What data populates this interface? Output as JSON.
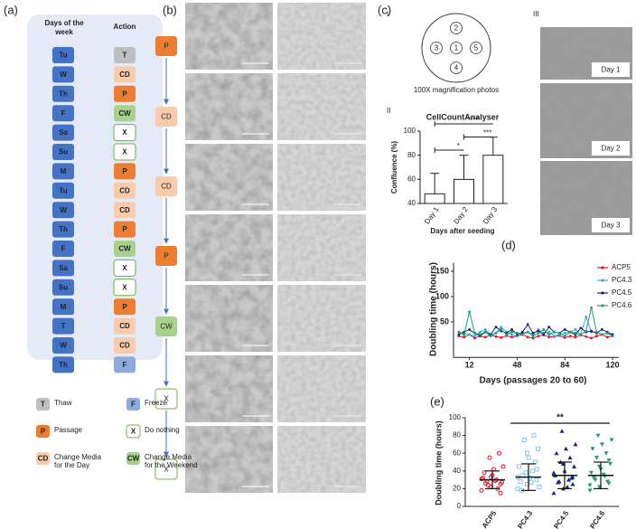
{
  "panel_a": {
    "label": "(a)",
    "headers": [
      "Days of the week",
      "Action"
    ],
    "day_color": "#4472c4",
    "action_colors": {
      "T": "#bfbfbf",
      "CD": "#f8cbad",
      "P": "#ed7d31",
      "CW": "#a9d18e",
      "X": "#ffffff",
      "F": "#8faadc"
    },
    "action_borders": {
      "X": "#70ad47"
    },
    "rows": [
      {
        "day": "Tu",
        "action": "T"
      },
      {
        "day": "W",
        "action": "CD"
      },
      {
        "day": "Th",
        "action": "P"
      },
      {
        "day": "F",
        "action": "CW"
      },
      {
        "day": "Sa",
        "action": "X"
      },
      {
        "day": "Su",
        "action": "X"
      },
      {
        "day": "M",
        "action": "P"
      },
      {
        "day": "Tu",
        "action": "CD"
      },
      {
        "day": "W",
        "action": "CD"
      },
      {
        "day": "Th",
        "action": "P"
      },
      {
        "day": "F",
        "action": "CW"
      },
      {
        "day": "Sa",
        "action": "X"
      },
      {
        "day": "Su",
        "action": "X"
      },
      {
        "day": "M",
        "action": "P"
      },
      {
        "day": "T",
        "action": "CD"
      },
      {
        "day": "W",
        "action": "CD"
      },
      {
        "day": "Th",
        "action": "F"
      }
    ],
    "legend": [
      {
        "code": "T",
        "text": "Thaw"
      },
      {
        "code": "F",
        "text": "Freeze"
      },
      {
        "code": "P",
        "text": "Passage"
      },
      {
        "code": "X",
        "text": "Do nothing"
      },
      {
        "code": "CD",
        "text": "Change Media for the Day"
      },
      {
        "code": "CW",
        "text": "Change Media for the Weekend"
      }
    ]
  },
  "panel_b": {
    "label": "(b)",
    "steps": [
      "P",
      "CD",
      "CD",
      "P",
      "CW",
      "X",
      "X"
    ]
  },
  "panel_c": {
    "label": "(c)",
    "part_i": "I",
    "wells": [
      1,
      2,
      3,
      4,
      5
    ],
    "caption": "100X magnification photos",
    "part_ii": "II",
    "part_iii": "III",
    "photos": [
      "Day 1",
      "Day 2",
      "Day 3"
    ]
  },
  "chart_data": [
    {
      "type": "bar",
      "title": "CellCountAnalyser",
      "ylabel": "Confluence (%)",
      "xlabel": "Days after seeding",
      "categories": [
        "Day 1",
        "Day 2",
        "Day 3"
      ],
      "values": [
        48,
        60,
        80
      ],
      "errors": [
        17,
        20,
        15
      ],
      "color": "#ffffff",
      "ylim": [
        40,
        100
      ],
      "yticks": [
        40,
        60,
        80,
        100
      ],
      "significance": [
        {
          "from": 0,
          "to": 1,
          "label": "*"
        },
        {
          "from": 1,
          "to": 2,
          "label": "***"
        },
        {
          "from": 0,
          "to": 2,
          "label": "****"
        }
      ]
    },
    {
      "type": "line",
      "panel_label": "(d)",
      "xlabel": "Days (passages 20 to 60)",
      "ylabel": "Doubling time (hours)",
      "x": [
        4,
        8,
        12,
        16,
        20,
        24,
        28,
        32,
        36,
        40,
        44,
        48,
        52,
        56,
        60,
        64,
        68,
        72,
        76,
        80,
        84,
        88,
        92,
        96,
        100,
        104,
        108,
        112,
        116,
        120
      ],
      "xlim": [
        0,
        122
      ],
      "xticks": [
        12,
        48,
        84,
        120
      ],
      "ylim": [
        -20,
        160
      ],
      "yticks": [
        50,
        100,
        150
      ],
      "legend": "upper right",
      "series": [
        {
          "name": "ACP5",
          "color": "#e8101f",
          "values": [
            22,
            20,
            25,
            18,
            22,
            20,
            24,
            21,
            19,
            23,
            20,
            22,
            25,
            20,
            18,
            22,
            24,
            20,
            21,
            23,
            19,
            22,
            20,
            24,
            21,
            18,
            22,
            25,
            20,
            22
          ]
        },
        {
          "name": "PC4.3",
          "color": "#3da5e0",
          "values": [
            30,
            28,
            25,
            22,
            30,
            35,
            25,
            28,
            40,
            30,
            25,
            22,
            28,
            30,
            25,
            35,
            28,
            30,
            22,
            25,
            28,
            30,
            35,
            25,
            60,
            30,
            30,
            25,
            28,
            26
          ]
        },
        {
          "name": "PC4.5",
          "color": "#1a237e",
          "values": [
            25,
            30,
            35,
            28,
            22,
            30,
            25,
            40,
            32,
            28,
            35,
            25,
            30,
            45,
            28,
            32,
            25,
            40,
            30,
            28,
            35,
            30,
            25,
            38,
            30,
            32,
            28,
            35,
            30,
            25
          ]
        },
        {
          "name": "PC4.6",
          "color": "#1aa06a",
          "values": [
            30,
            25,
            70,
            28,
            25,
            30,
            22,
            28,
            35,
            25,
            30,
            28,
            25,
            30,
            22,
            28,
            35,
            25,
            30,
            28,
            22,
            30,
            28,
            25,
            32,
            78,
            30,
            25,
            28,
            22
          ]
        }
      ]
    },
    {
      "type": "dot",
      "panel_label": "(e)",
      "ylabel": "Doubling time (hours)",
      "categories": [
        "ACP5",
        "PC4.3",
        "PC4.5",
        "PC4.6"
      ],
      "ylim": [
        0,
        100
      ],
      "yticks": [
        0,
        20,
        40,
        60,
        80,
        100
      ],
      "groups": [
        {
          "color": "#e8101f",
          "marker": "circle",
          "mean": 30,
          "sd": 10,
          "values": [
            18,
            22,
            25,
            28,
            30,
            32,
            35,
            27,
            24,
            20,
            38,
            42,
            45,
            55,
            60,
            26,
            29,
            31,
            33,
            15
          ]
        },
        {
          "color": "#8ec6ec",
          "marker": "square",
          "mean": 33,
          "sd": 15,
          "values": [
            20,
            25,
            30,
            35,
            40,
            45,
            55,
            65,
            75,
            80,
            28,
            32,
            22,
            38,
            50,
            18,
            27,
            33,
            60,
            42
          ]
        },
        {
          "color": "#1a237e",
          "marker": "triangle",
          "mean": 35,
          "sd": 15,
          "values": [
            15,
            20,
            25,
            28,
            30,
            35,
            40,
            45,
            50,
            55,
            60,
            65,
            70,
            85,
            32,
            27,
            22,
            38,
            48,
            33
          ]
        },
        {
          "color": "#1aa06a",
          "marker": "triangle-down",
          "mean": 35,
          "sd": 15,
          "values": [
            18,
            22,
            26,
            30,
            34,
            38,
            42,
            48,
            55,
            60,
            65,
            70,
            75,
            80,
            28,
            32,
            36,
            24,
            45,
            52
          ]
        }
      ],
      "significance": [
        {
          "from": 1,
          "to": 3,
          "label": "**"
        }
      ]
    }
  ]
}
